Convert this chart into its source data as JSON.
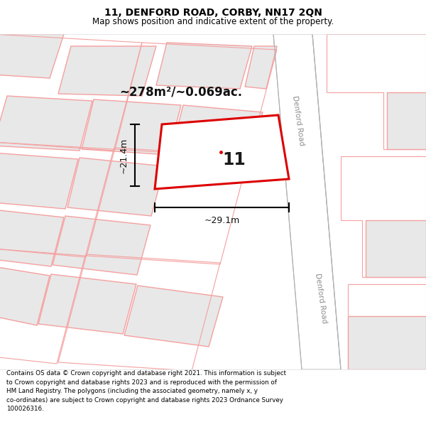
{
  "title": "11, DENFORD ROAD, CORBY, NN17 2QN",
  "subtitle": "Map shows position and indicative extent of the property.",
  "footer": "Contains OS data © Crown copyright and database right 2021. This information is subject\nto Crown copyright and database rights 2023 and is reproduced with the permission of\nHM Land Registry. The polygons (including the associated geometry, namely x, y\nco-ordinates) are subject to Crown copyright and database rights 2023 Ordnance Survey\n100026316.",
  "area_text": "~278m²/~0.069ac.",
  "property_number": "11",
  "dim_width": "~29.1m",
  "dim_height": "~21.4m",
  "road_label": "Denford Road",
  "map_bg": "#ffffff",
  "bld_fill": "#e8e8e8",
  "bld_stroke": "#f5a0a0",
  "plot_outline": "#f5a0a0",
  "road_line": "#c0c0c0",
  "main_stroke": "#dd0000",
  "main_fill": "#ffffff",
  "title_fontsize": 10,
  "subtitle_fontsize": 8.5,
  "footer_fontsize": 6.3
}
